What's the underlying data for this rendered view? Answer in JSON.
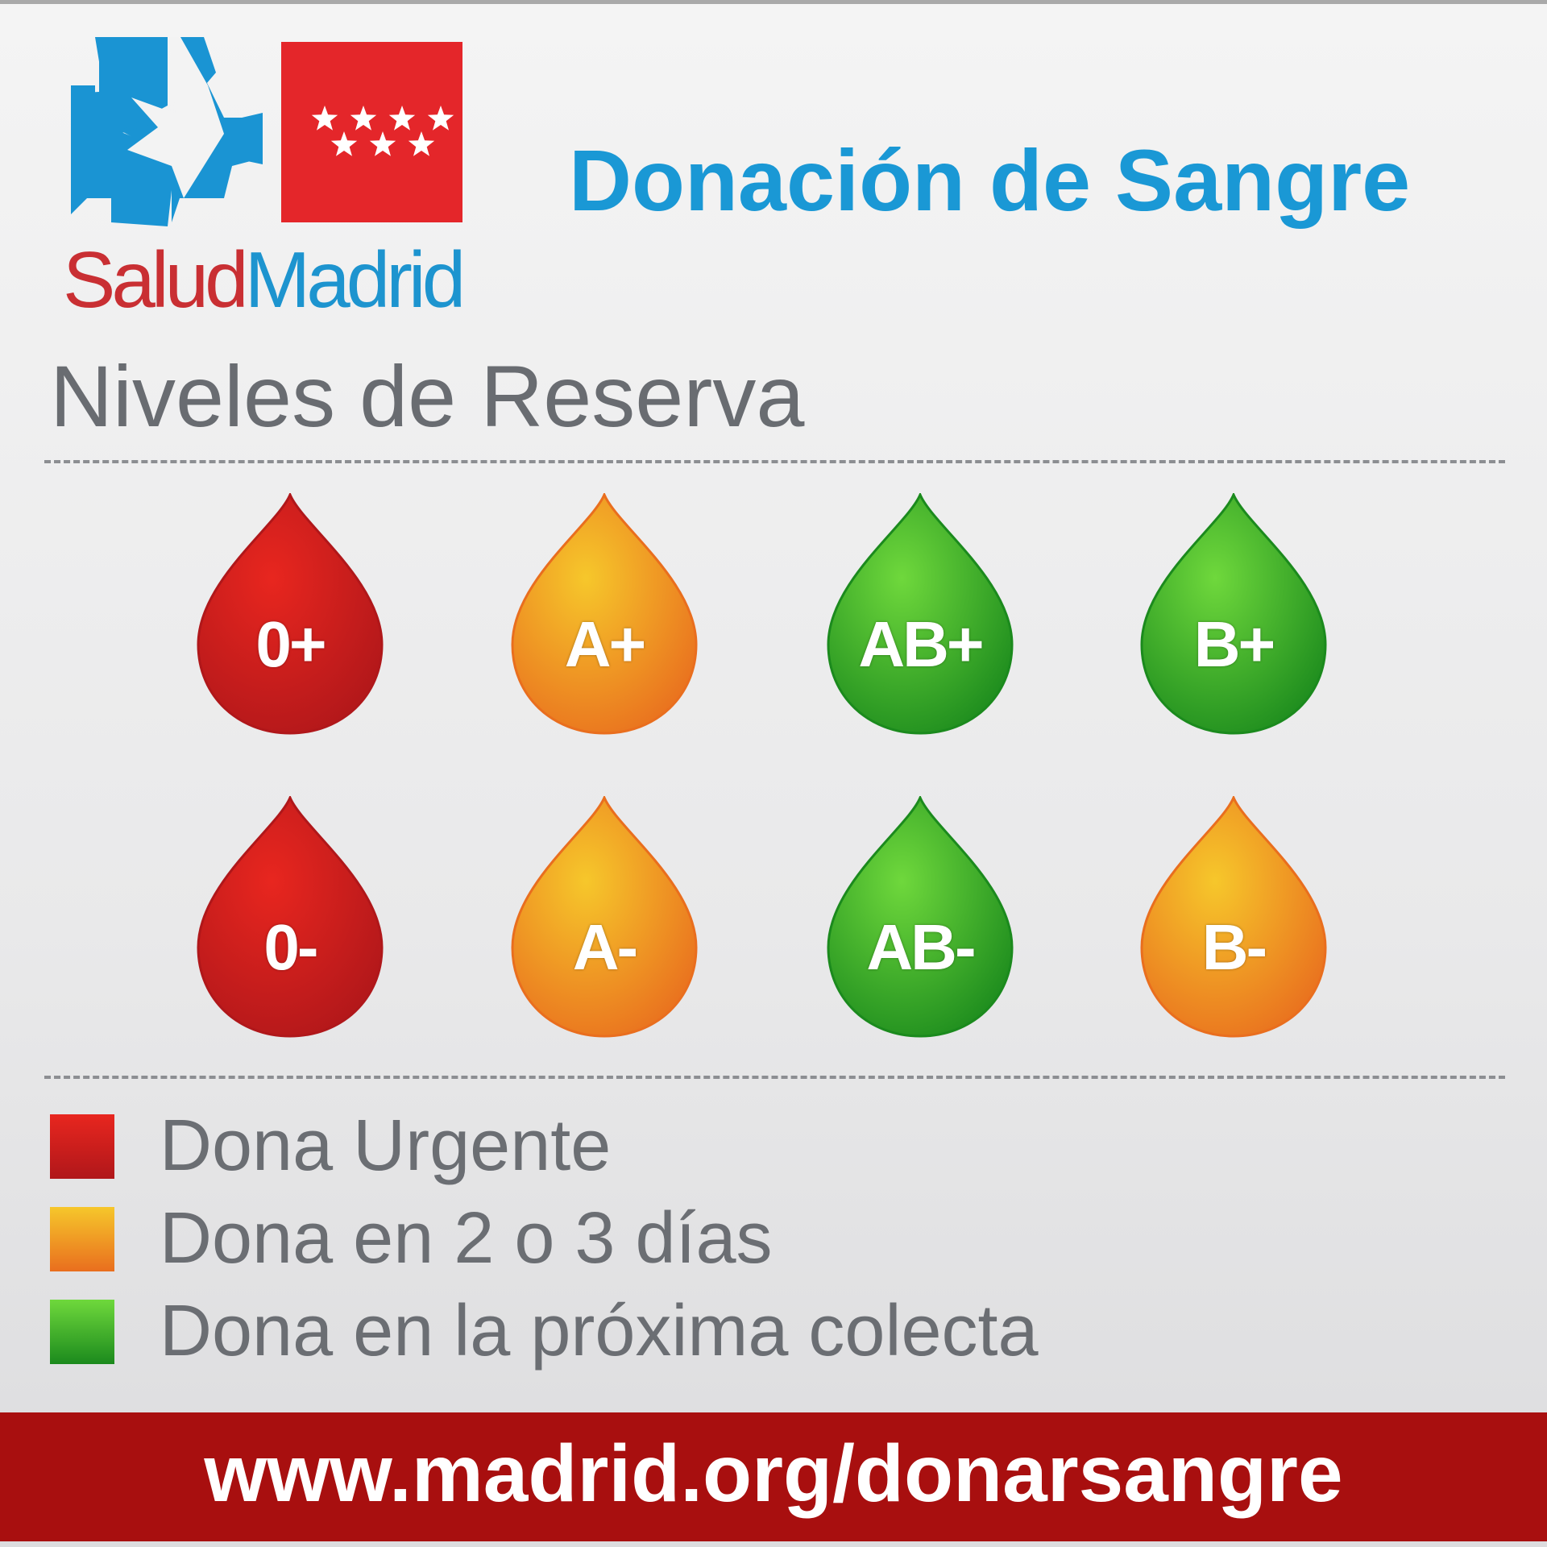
{
  "logo": {
    "text_part1": "Salud",
    "text_part2": "Madrid",
    "brand_blue": "#1d94cf",
    "brand_red": "#e4262a"
  },
  "header": {
    "title": "Donación de Sangre"
  },
  "section": {
    "title": "Niveles de Reserva"
  },
  "levels": {
    "urgent": {
      "color_top": "#e8261f",
      "color_bottom": "#b0171a"
    },
    "soon": {
      "color_top": "#f6c72b",
      "color_bottom": "#e96e1e"
    },
    "ok": {
      "color_top": "#6fd83c",
      "color_bottom": "#1b8a1d"
    }
  },
  "blood_types": [
    {
      "label": "0+",
      "level": "urgent"
    },
    {
      "label": "A+",
      "level": "soon"
    },
    {
      "label": "AB+",
      "level": "ok"
    },
    {
      "label": "B+",
      "level": "ok"
    },
    {
      "label": "0-",
      "level": "urgent"
    },
    {
      "label": "A-",
      "level": "soon"
    },
    {
      "label": "AB-",
      "level": "ok"
    },
    {
      "label": "B-",
      "level": "soon"
    }
  ],
  "legend": [
    {
      "label": "Dona Urgente",
      "level": "urgent"
    },
    {
      "label": "Dona en 2 o 3 días",
      "level": "soon"
    },
    {
      "label": "Dona en la próxima colecta",
      "level": "ok"
    }
  ],
  "footer": {
    "url": "www.madrid.org/donarsangre"
  }
}
